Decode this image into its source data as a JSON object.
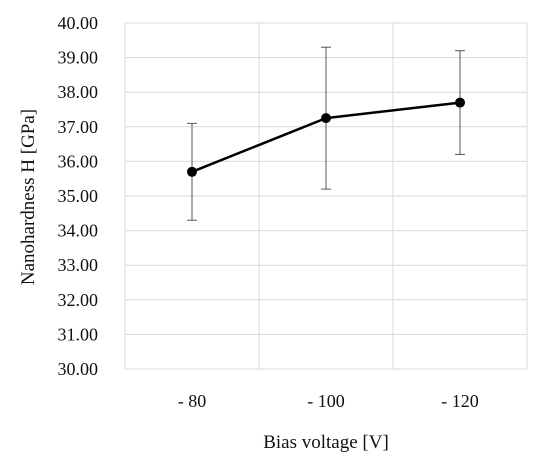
{
  "chart_data": {
    "type": "line",
    "title": "",
    "xlabel": "Bias voltage [V]",
    "ylabel": "Nanohardness H [GPa]",
    "categories": [
      "- 80",
      "- 100",
      "- 120"
    ],
    "series": [
      {
        "values": [
          35.7,
          37.25,
          37.7
        ],
        "error_low": [
          34.3,
          35.2,
          36.2
        ],
        "error_high": [
          37.1,
          39.3,
          39.2
        ]
      }
    ],
    "ylim": [
      30.0,
      40.0
    ],
    "yticks": [
      "30.00",
      "31.00",
      "32.00",
      "33.00",
      "34.00",
      "35.00",
      "36.00",
      "37.00",
      "38.00",
      "39.00",
      "40.00"
    ],
    "grid": true,
    "legend": "none",
    "colors": {
      "series": "#000000",
      "grid": "#d9d9d9",
      "errorbar": "#555555"
    }
  }
}
